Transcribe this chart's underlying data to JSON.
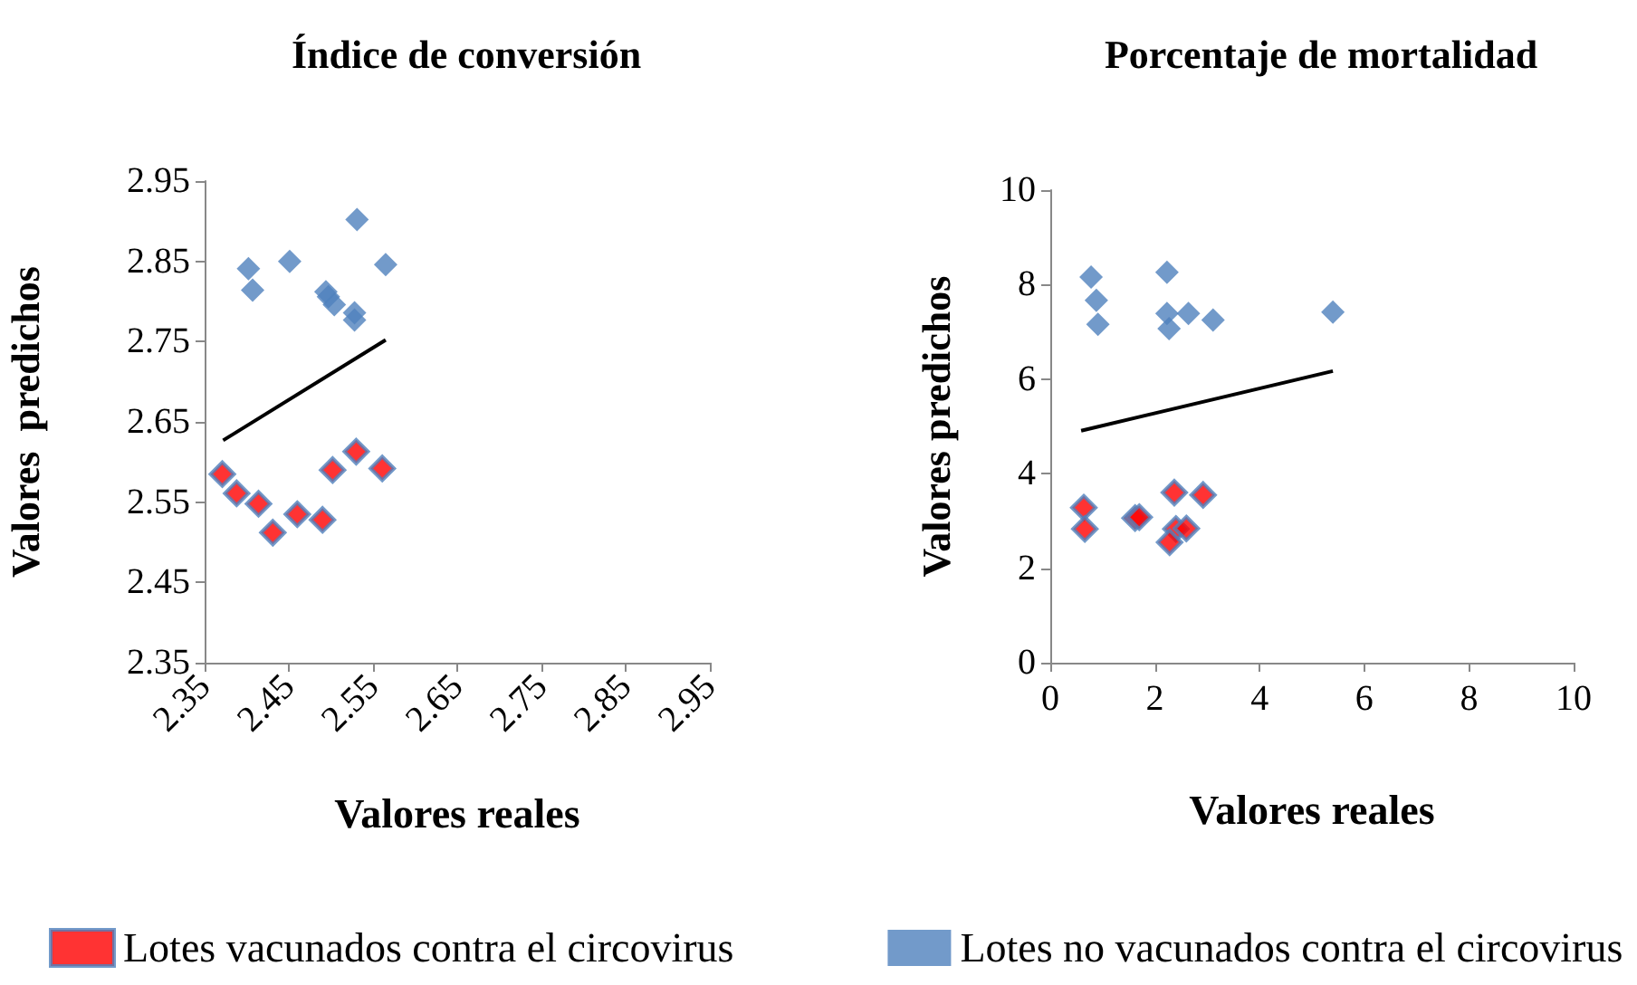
{
  "chart_data": [
    {
      "type": "scatter",
      "title": "Índice de conversión",
      "xlabel": "Valores reales",
      "ylabel": "Valores  predichos",
      "marker": "diamond",
      "legend": "bottom",
      "grid": false,
      "xlim": [
        2.35,
        2.95
      ],
      "xticks": [
        2.35,
        2.45,
        2.55,
        2.65,
        2.75,
        2.85,
        2.95
      ],
      "ylim": [
        2.35,
        2.95
      ],
      "yticks": [
        2.35,
        2.45,
        2.55,
        2.65,
        2.75,
        2.85,
        2.95
      ],
      "series": [
        {
          "name": "Lotes vacunados contra el circovirus",
          "color": "#ff0000",
          "x": [
            2.371,
            2.388,
            2.414,
            2.431,
            2.46,
            2.49,
            2.502,
            2.53,
            2.561
          ],
          "values": [
            2.585,
            2.561,
            2.548,
            2.512,
            2.535,
            2.528,
            2.59,
            2.613,
            2.592
          ]
        },
        {
          "name": "Lotes no vacunados contra el circovirus",
          "color": "#4f81bd",
          "x": [
            2.402,
            2.407,
            2.451,
            2.494,
            2.497,
            2.504,
            2.528,
            2.528,
            2.531,
            2.565
          ],
          "values": [
            2.841,
            2.814,
            2.85,
            2.812,
            2.806,
            2.796,
            2.786,
            2.777,
            2.902,
            2.846
          ]
        },
        {
          "type": "line",
          "color": "#000000",
          "marker": "none",
          "x": [
            2.372,
            2.565
          ],
          "values": [
            2.627,
            2.752
          ]
        }
      ]
    },
    {
      "type": "scatter",
      "title": "Porcentaje de mortalidad",
      "xlabel": "Valores reales",
      "ylabel": "Valores predichos",
      "marker": "diamond",
      "grid": false,
      "xlim": [
        0,
        10
      ],
      "xticks": [
        0,
        2,
        4,
        6,
        8,
        10
      ],
      "ylim": [
        0,
        10
      ],
      "yticks": [
        0,
        2,
        4,
        6,
        8,
        10
      ],
      "series": [
        {
          "color": "#ff0000",
          "x": [
            0.64,
            0.66,
            1.62,
            1.7,
            2.37,
            2.4,
            2.28,
            2.6,
            2.92
          ],
          "values": [
            3.28,
            2.83,
            3.06,
            3.08,
            3.6,
            2.83,
            2.55,
            2.84,
            3.55
          ]
        },
        {
          "color": "#4f81bd",
          "x": [
            0.78,
            0.88,
            0.91,
            2.23,
            2.23,
            2.27,
            2.64,
            3.11,
            5.4
          ],
          "values": [
            8.16,
            7.67,
            7.16,
            8.26,
            7.39,
            7.07,
            7.39,
            7.25,
            7.42
          ]
        },
        {
          "type": "line",
          "color": "#000000",
          "marker": "none",
          "x": [
            0.59,
            5.4
          ],
          "values": [
            4.91,
            6.17
          ]
        }
      ]
    }
  ]
}
